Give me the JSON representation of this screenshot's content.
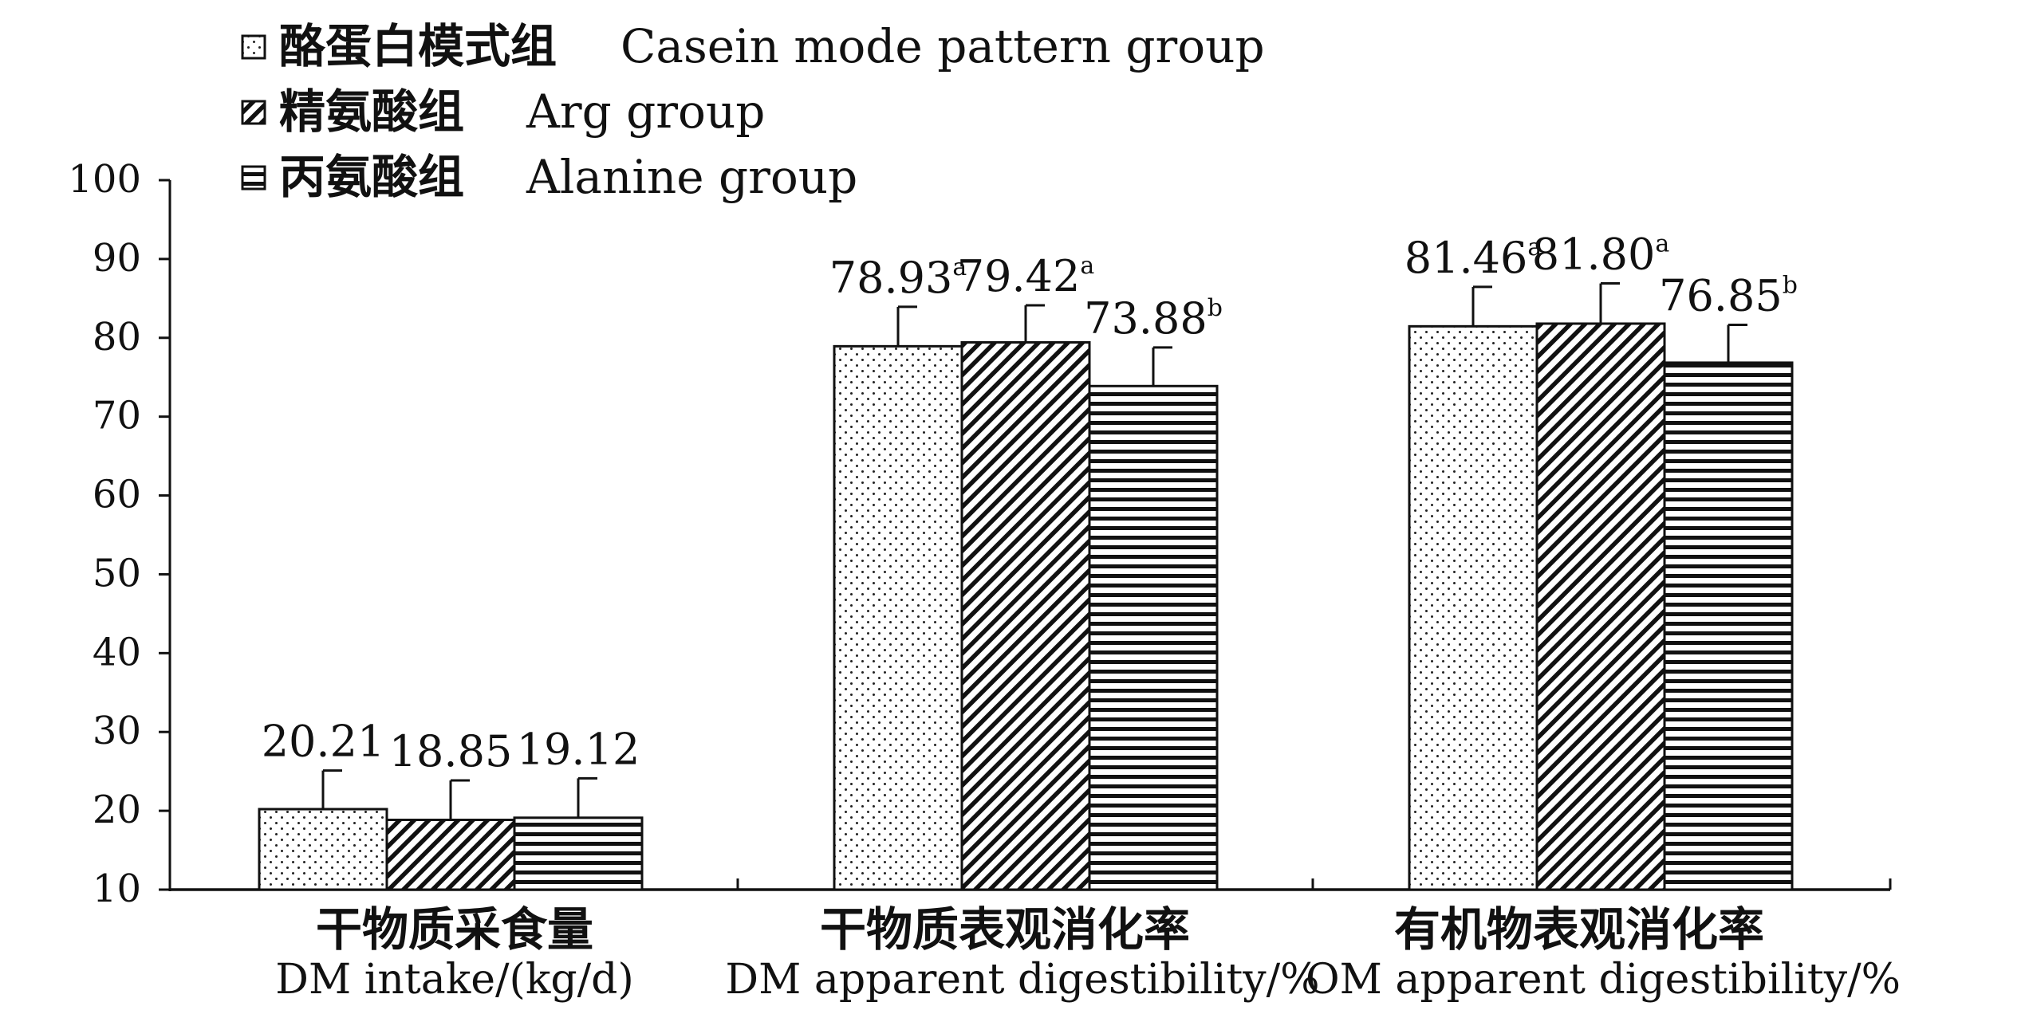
{
  "chart_data": {
    "type": "bar",
    "categories": [
      {
        "label_cn": "干物质采食量",
        "label_en": "DM intake/(kg/d)"
      },
      {
        "label_cn": "干物质表观消化率",
        "label_en": "DM apparent digestibility/%"
      },
      {
        "label_cn": "有机物表观消化率",
        "label_en": "OM apparent digestibility/%"
      }
    ],
    "series": [
      {
        "name_cn": "酪蛋白模式组",
        "name_en": "Casein mode pattern group",
        "pattern": "dots",
        "values": [
          20.21,
          78.93,
          81.46
        ],
        "errors": [
          4.9,
          5.0,
          5.0
        ],
        "labels": [
          "20.21",
          "78.93",
          "81.46"
        ],
        "sup": [
          "",
          "a",
          "a"
        ]
      },
      {
        "name_cn": "精氨酸组",
        "name_en": "Arg group",
        "pattern": "diagonal",
        "values": [
          18.85,
          79.42,
          81.8
        ],
        "errors": [
          5.0,
          4.7,
          5.1
        ],
        "labels": [
          "18.85",
          "79.42",
          "81.80"
        ],
        "sup": [
          "",
          "a",
          "a"
        ]
      },
      {
        "name_cn": "丙氨酸组",
        "name_en": "Alanine group",
        "pattern": "horizontal",
        "values": [
          19.12,
          73.88,
          76.85
        ],
        "errors": [
          5.0,
          4.9,
          4.8
        ],
        "labels": [
          "19.12",
          "73.88",
          "76.85"
        ],
        "sup": [
          "",
          "b",
          "b"
        ]
      }
    ],
    "yticks": [
      10,
      20,
      30,
      40,
      50,
      60,
      70,
      80,
      90,
      100
    ],
    "ylim": [
      10,
      100
    ],
    "legend_position": "top-left",
    "grid": false,
    "colors": {
      "stroke": "#111111",
      "background": "#ffffff"
    }
  }
}
